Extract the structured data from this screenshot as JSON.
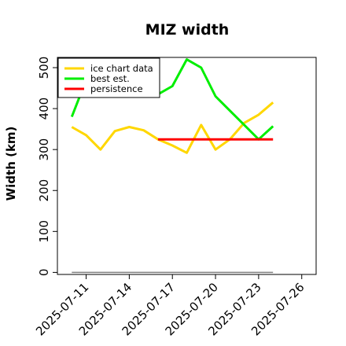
{
  "chart_data": {
    "type": "line",
    "title": "MIZ width",
    "ylabel": "Width (km)",
    "xlabel": "",
    "ylim": [
      -5,
      525
    ],
    "yticks": [
      0,
      100,
      200,
      300,
      400,
      500
    ],
    "xticks": [
      "2025-07-11",
      "2025-07-14",
      "2025-07-17",
      "2025-07-20",
      "2025-07-23",
      "2025-07-26"
    ],
    "xlim": [
      "2025-07-09",
      "2025-07-27"
    ],
    "grid": false,
    "legend_position": "top-left",
    "series": [
      {
        "name": "ice chart data",
        "color": "#FFD700",
        "x": [
          "2025-07-10",
          "2025-07-11",
          "2025-07-12",
          "2025-07-13",
          "2025-07-14",
          "2025-07-15",
          "2025-07-16",
          "2025-07-17",
          "2025-07-18",
          "2025-07-19",
          "2025-07-20",
          "2025-07-21",
          "2025-07-22",
          "2025-07-23",
          "2025-07-24"
        ],
        "values": [
          355,
          335,
          300,
          345,
          355,
          347,
          325,
          310,
          292,
          360,
          300,
          325,
          365,
          385,
          415
        ]
      },
      {
        "name": "best est.",
        "color": "#00EE00",
        "x": [
          "2025-07-10",
          "2025-07-11",
          "2025-07-12",
          "2025-07-13",
          "2025-07-14",
          "2025-07-15",
          "2025-07-16",
          "2025-07-17",
          "2025-07-18",
          "2025-07-19",
          "2025-07-20",
          "2025-07-21",
          "2025-07-22",
          "2025-07-23",
          "2025-07-24"
        ],
        "values": [
          380,
          470,
          480,
          450,
          440,
          430,
          435,
          455,
          520,
          500,
          430,
          395,
          360,
          325,
          357
        ]
      },
      {
        "name": "persistence",
        "color": "#FF0000",
        "x": [
          "2025-07-16",
          "2025-07-24"
        ],
        "values": [
          325,
          325
        ]
      },
      {
        "name": "",
        "color": "#808080",
        "x": [
          "2025-07-10",
          "2025-07-24"
        ],
        "values": [
          0,
          0
        ]
      }
    ]
  }
}
